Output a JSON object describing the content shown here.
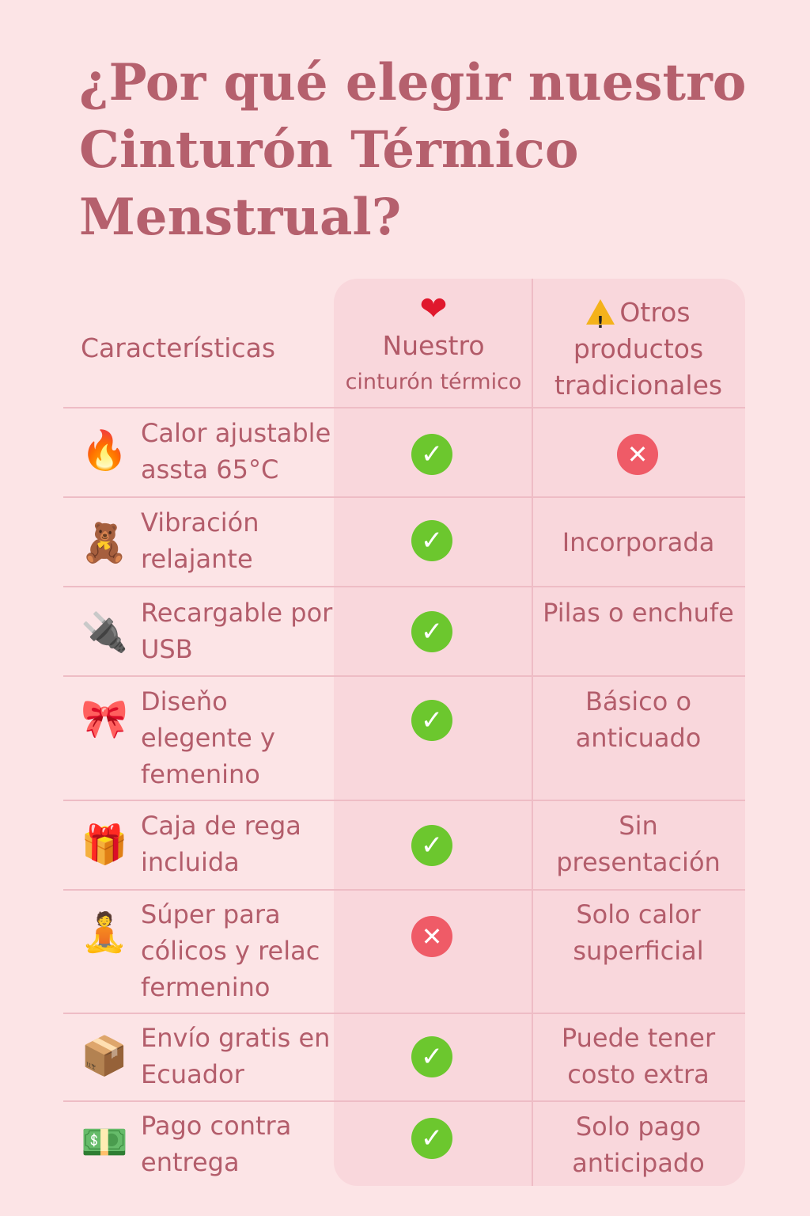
{
  "title": {
    "line1": "¿Por qué elegir nuestro",
    "line2": "Cinturón Térmico",
    "line3": "Menstrual?"
  },
  "header": {
    "features": "Características",
    "ours_line1": "Nuestro",
    "ours_line2": "cinturón térmico",
    "other": "Otros productos tradicionales"
  },
  "colors": {
    "background": "#fce4e6",
    "text": "#b35d6b",
    "check": "#6cc72e",
    "cross": "#ef5b67"
  },
  "rows": [
    {
      "icon": "fire-icon",
      "feature": "Calor ajustable assta 65°C",
      "ours": "check",
      "other_mark": "cross",
      "other": ""
    },
    {
      "icon": "sleeping-bear-icon",
      "feature": "Vibración relajante",
      "ours": "check",
      "other": "Incorporada"
    },
    {
      "icon": "usb-plug-icon",
      "feature": "Recargable por USB",
      "ours": "check",
      "other": "Pilas o enchufe"
    },
    {
      "icon": "ribbon-bow-icon",
      "feature": "Diseňo elegente y femenino",
      "ours": "check",
      "other": "Básico o anticuado"
    },
    {
      "icon": "gift-icon",
      "feature": "Caja de rega incluida",
      "ours": "check",
      "other": "Sin presentación"
    },
    {
      "icon": "meditating-woman-icon",
      "feature": "Súper para cólicos y relac fermenino",
      "ours": "cross",
      "other": "Solo calor superficial"
    },
    {
      "icon": "package-box-icon",
      "feature": "Envío gratis en Ecuador",
      "ours": "check",
      "other": "Puede tener costo extra"
    },
    {
      "icon": "money-stack-icon",
      "feature": "Pago contra entrega",
      "ours": "check",
      "other": "Solo pago anticipado"
    }
  ]
}
